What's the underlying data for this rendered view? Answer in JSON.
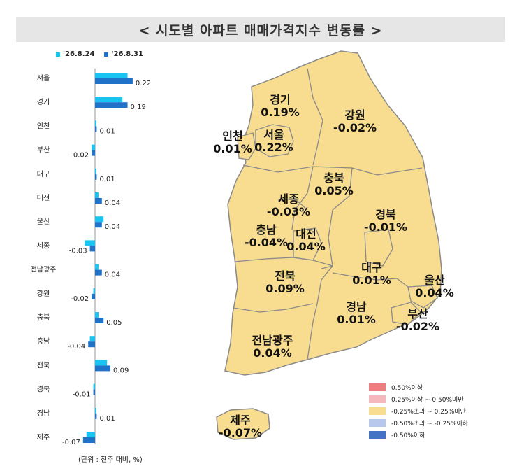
{
  "title": "< 시도별 아파트 매매가격지수 변동률 >",
  "legend": {
    "series1": {
      "label": "'26.8.24",
      "color": "#19c3f2"
    },
    "series2": {
      "label": "'26.8.31",
      "color": "#1f72c8"
    }
  },
  "unit_note": "(단위 : 전주 대비, %)",
  "chart_data": {
    "type": "bar",
    "orientation": "horizontal",
    "categories": [
      "서울",
      "경기",
      "인천",
      "부산",
      "대구",
      "대전",
      "울산",
      "세종",
      "전남광주",
      "강원",
      "충북",
      "충남",
      "전북",
      "경북",
      "경남",
      "제주"
    ],
    "series": [
      {
        "name": "'26.8.24",
        "values": [
          0.19,
          0.16,
          0.0,
          -0.02,
          0.0,
          0.02,
          0.05,
          -0.06,
          0.02,
          -0.01,
          0.02,
          -0.03,
          0.07,
          -0.01,
          0.0,
          -0.05
        ]
      },
      {
        "name": "'26.8.31",
        "values": [
          0.22,
          0.19,
          0.01,
          -0.02,
          0.01,
          0.04,
          0.04,
          -0.03,
          0.04,
          -0.02,
          0.05,
          -0.04,
          0.09,
          -0.01,
          0.01,
          -0.07
        ]
      }
    ],
    "data_labels": [
      "0.22",
      "0.19",
      "0.01",
      "-0.02",
      "0.01",
      "0.04",
      "0.04",
      "-0.03",
      "0.04",
      "-0.02",
      "0.05",
      "-0.04",
      "0.09",
      "-0.01",
      "0.01",
      "-0.07"
    ]
  },
  "map": {
    "regions": [
      {
        "name": "경기",
        "value": "0.19%"
      },
      {
        "name": "강원",
        "value": "-0.02%"
      },
      {
        "name": "인천",
        "value": "0.01%"
      },
      {
        "name": "서울",
        "value": "0.22%"
      },
      {
        "name": "충북",
        "value": "0.05%"
      },
      {
        "name": "세종",
        "value": "-0.03%"
      },
      {
        "name": "경북",
        "value": "-0.01%"
      },
      {
        "name": "충남",
        "value": "-0.04%"
      },
      {
        "name": "대전",
        "value": "0.04%"
      },
      {
        "name": "대구",
        "value": "0.01%"
      },
      {
        "name": "울산",
        "value": "0.04%"
      },
      {
        "name": "전북",
        "value": "0.09%"
      },
      {
        "name": "경남",
        "value": "0.01%"
      },
      {
        "name": "부산",
        "value": "-0.02%"
      },
      {
        "name": "전남광주",
        "value": "0.04%"
      },
      {
        "name": "제주",
        "value": "-0.07%"
      }
    ],
    "fill_color": "#f8dc8f",
    "border_color": "#8a8a8a",
    "legend": [
      {
        "label": "0.50%이상",
        "color": "#ee7b80"
      },
      {
        "label": "0.25%이상 ~ 0.50%미만",
        "color": "#f4b8bd"
      },
      {
        "label": "-0.25%초과 ~ 0.25%미만",
        "color": "#f8dc8f"
      },
      {
        "label": "-0.50%초과 ~ -0.25%이하",
        "color": "#b8c8ec"
      },
      {
        "label": "-0.50%이하",
        "color": "#4472c4"
      }
    ]
  }
}
